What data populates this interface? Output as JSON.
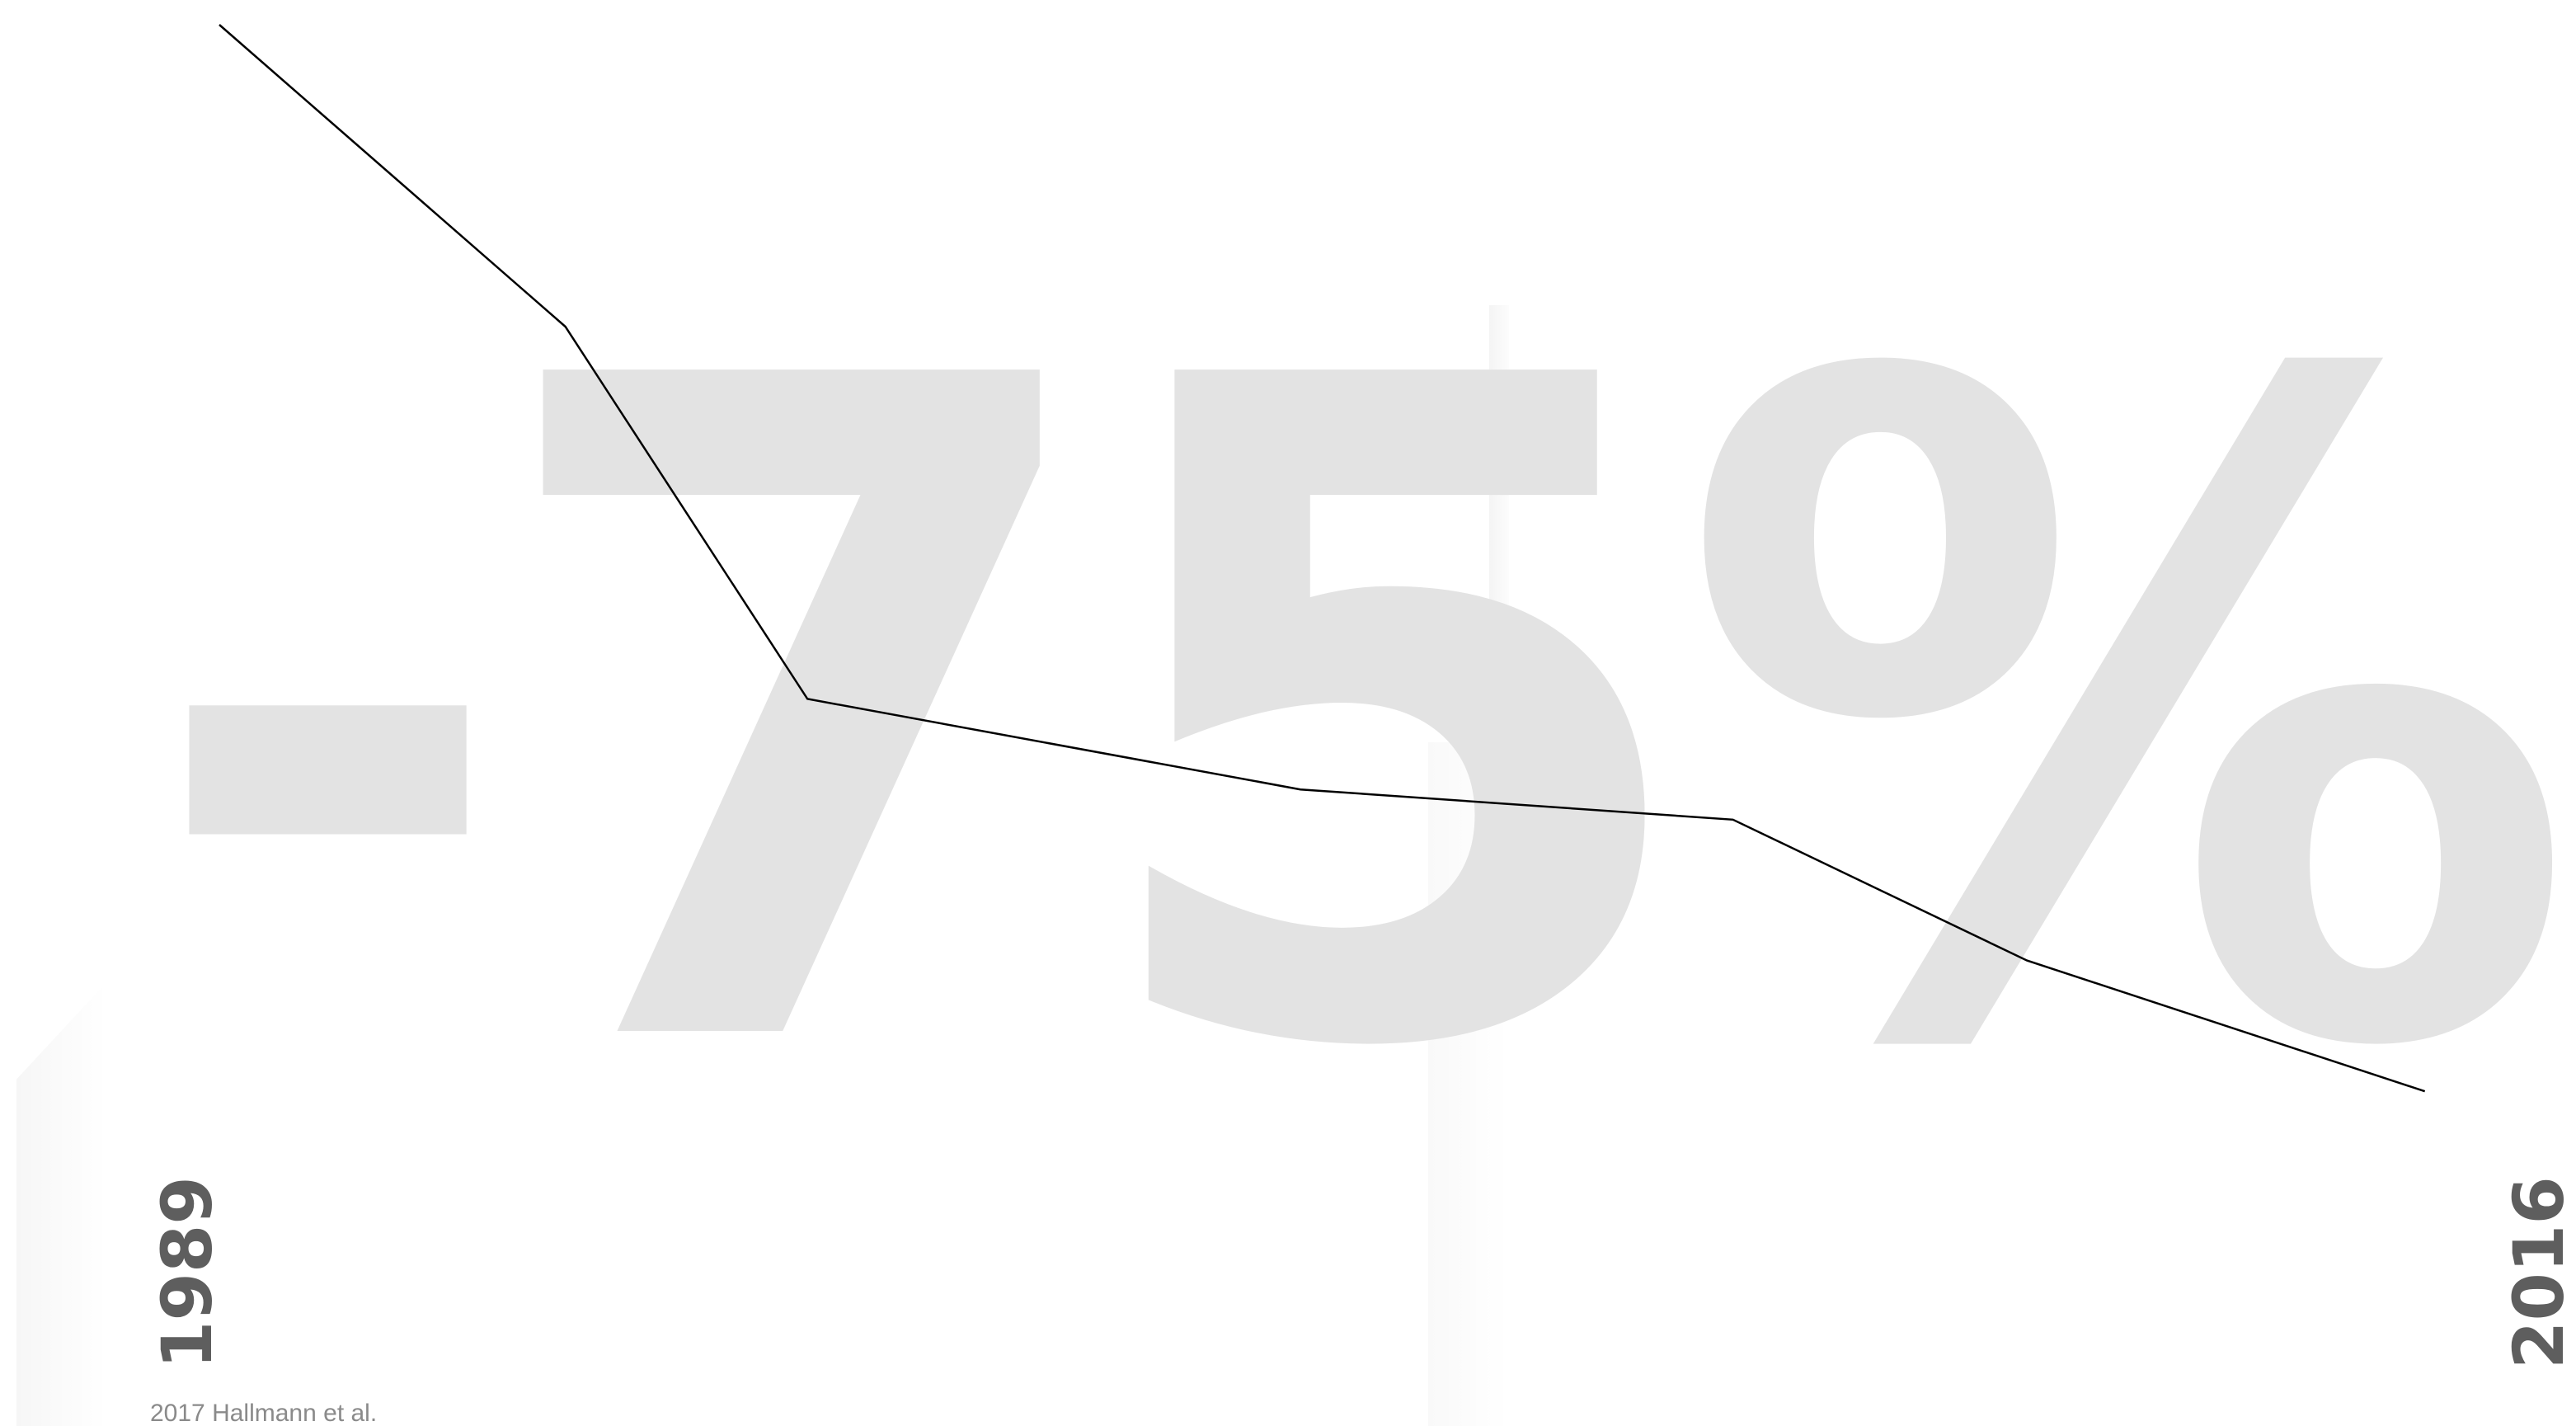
{
  "headline": "-75%",
  "source": "2017 Hallmann et al.",
  "chart_data": {
    "type": "line",
    "title": "-75%",
    "x_start_label": "1989",
    "x_end_label": "2016",
    "xlim": [
      1989,
      2016
    ],
    "ylim": [
      0,
      100
    ],
    "x": [
      1989,
      1993,
      1995.8,
      2001.5,
      2006.5,
      2009.9,
      2014.5
    ],
    "y": [
      100,
      70,
      33,
      24,
      21,
      7,
      -6
    ],
    "grid": false,
    "legend": "none",
    "colors": {
      "line": "#000000",
      "headline": "#e3e3e3",
      "year_labels": "#5e5e5e",
      "source": "#8a8a8a"
    }
  }
}
